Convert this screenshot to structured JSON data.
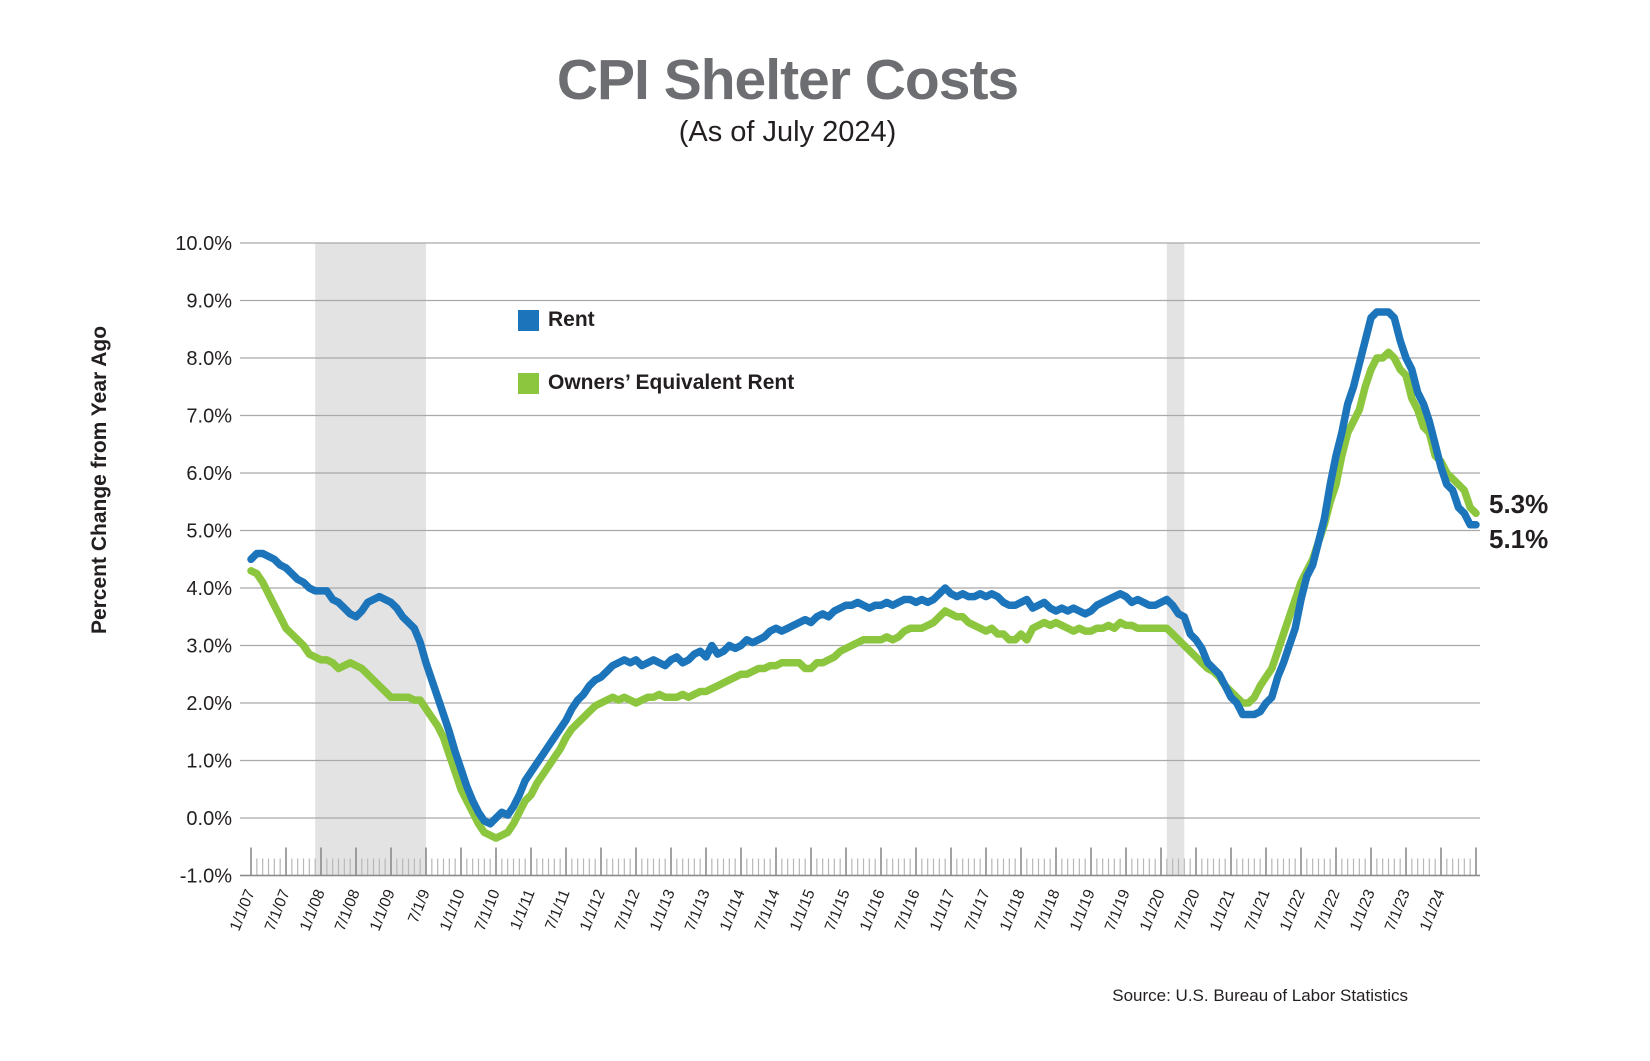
{
  "chart_data": {
    "type": "line",
    "title": "CPI Shelter Costs",
    "subtitle": "(As of July 2024)",
    "ylabel": "Percent Change from Year Ago",
    "xlabel": "",
    "ylim": [
      -1.0,
      10.0
    ],
    "grid": "horizontal",
    "legend_position": "inside-top-left",
    "x_unit": "month",
    "x_range": [
      "1/2007",
      "7/2024"
    ],
    "y_ticks": {
      "labels": [
        "10.0%",
        "9.0%",
        "8.0%",
        "7.0%",
        "6.0%",
        "5.0%",
        "4.0%",
        "3.0%",
        "2.0%",
        "1.0%",
        "0.0%",
        "-1.0%"
      ],
      "values": [
        10,
        9,
        8,
        7,
        6,
        5,
        4,
        3,
        2,
        1,
        0,
        -1
      ]
    },
    "x_tick_labels": [
      "1/1/07",
      "7/1/07",
      "1/1/08",
      "7/1/08",
      "1/1/09",
      "7/1/9",
      "1/1/10",
      "7/1/10",
      "1/1/11",
      "7/1/11",
      "1/1/12",
      "7/1/12",
      "1/1/13",
      "7/1/13",
      "1/1/14",
      "7/1/14",
      "1/1/15",
      "7/1/15",
      "1/1/16",
      "7/1/16",
      "1/1/17",
      "7/1/17",
      "1/1/18",
      "7/1/18",
      "1/1/19",
      "7/1/19",
      "1/1/20",
      "7/1/20",
      "1/1/21",
      "7/1/21",
      "1/1/22",
      "7/1/22",
      "1/1/23",
      "7/1/23",
      "1/1/24"
    ],
    "recession_bands": [
      {
        "from": "12/2007",
        "to": "6/2009"
      },
      {
        "from": "2/2020",
        "to": "4/2020"
      }
    ],
    "band_color": "#e3e3e4",
    "series": [
      {
        "name": "Rent",
        "color": "#1c75bb",
        "end_label": "5.1%",
        "values": [
          4.5,
          4.6,
          4.6,
          4.55,
          4.5,
          4.4,
          4.35,
          4.25,
          4.15,
          4.1,
          4.0,
          3.95,
          3.95,
          3.95,
          3.8,
          3.75,
          3.65,
          3.55,
          3.5,
          3.6,
          3.75,
          3.8,
          3.85,
          3.8,
          3.75,
          3.65,
          3.5,
          3.4,
          3.3,
          3.05,
          2.7,
          2.4,
          2.1,
          1.8,
          1.5,
          1.15,
          0.85,
          0.55,
          0.3,
          0.1,
          -0.05,
          -0.1,
          0.0,
          0.1,
          0.05,
          0.2,
          0.4,
          0.65,
          0.8,
          0.95,
          1.1,
          1.25,
          1.4,
          1.55,
          1.7,
          1.9,
          2.05,
          2.15,
          2.3,
          2.4,
          2.45,
          2.55,
          2.65,
          2.7,
          2.75,
          2.7,
          2.75,
          2.65,
          2.7,
          2.75,
          2.7,
          2.65,
          2.75,
          2.8,
          2.7,
          2.75,
          2.85,
          2.9,
          2.8,
          3.0,
          2.85,
          2.9,
          3.0,
          2.95,
          3.0,
          3.1,
          3.05,
          3.1,
          3.15,
          3.25,
          3.3,
          3.25,
          3.3,
          3.35,
          3.4,
          3.45,
          3.4,
          3.5,
          3.55,
          3.5,
          3.6,
          3.65,
          3.7,
          3.7,
          3.75,
          3.7,
          3.65,
          3.7,
          3.7,
          3.75,
          3.7,
          3.75,
          3.8,
          3.8,
          3.75,
          3.8,
          3.75,
          3.8,
          3.9,
          4.0,
          3.9,
          3.85,
          3.9,
          3.85,
          3.85,
          3.9,
          3.85,
          3.9,
          3.85,
          3.75,
          3.7,
          3.7,
          3.75,
          3.8,
          3.65,
          3.7,
          3.75,
          3.65,
          3.6,
          3.65,
          3.6,
          3.65,
          3.6,
          3.55,
          3.6,
          3.7,
          3.75,
          3.8,
          3.85,
          3.9,
          3.85,
          3.75,
          3.8,
          3.75,
          3.7,
          3.7,
          3.75,
          3.8,
          3.7,
          3.55,
          3.5,
          3.2,
          3.1,
          2.95,
          2.7,
          2.6,
          2.5,
          2.3,
          2.1,
          2.0,
          1.8,
          1.8,
          1.8,
          1.85,
          2.0,
          2.1,
          2.45,
          2.7,
          3.0,
          3.3,
          3.8,
          4.2,
          4.4,
          4.8,
          5.2,
          5.8,
          6.3,
          6.7,
          7.2,
          7.5,
          7.9,
          8.3,
          8.7,
          8.8,
          8.8,
          8.8,
          8.7,
          8.3,
          8.0,
          7.8,
          7.4,
          7.2,
          6.9,
          6.5,
          6.1,
          5.8,
          5.7,
          5.4,
          5.3,
          5.1,
          5.1
        ]
      },
      {
        "name": "Owners’ Equivalent Rent",
        "color": "#8cc63e",
        "end_label": "5.3%",
        "values": [
          4.3,
          4.25,
          4.1,
          3.9,
          3.7,
          3.5,
          3.3,
          3.2,
          3.1,
          3.0,
          2.85,
          2.8,
          2.75,
          2.75,
          2.7,
          2.6,
          2.65,
          2.7,
          2.65,
          2.6,
          2.5,
          2.4,
          2.3,
          2.2,
          2.1,
          2.1,
          2.1,
          2.1,
          2.05,
          2.05,
          1.9,
          1.75,
          1.6,
          1.4,
          1.1,
          0.8,
          0.5,
          0.3,
          0.1,
          -0.1,
          -0.25,
          -0.3,
          -0.35,
          -0.3,
          -0.25,
          -0.1,
          0.1,
          0.3,
          0.4,
          0.6,
          0.75,
          0.9,
          1.05,
          1.2,
          1.4,
          1.55,
          1.65,
          1.75,
          1.85,
          1.95,
          2.0,
          2.05,
          2.1,
          2.05,
          2.1,
          2.05,
          2.0,
          2.05,
          2.1,
          2.1,
          2.15,
          2.1,
          2.1,
          2.1,
          2.15,
          2.1,
          2.15,
          2.2,
          2.2,
          2.25,
          2.3,
          2.35,
          2.4,
          2.45,
          2.5,
          2.5,
          2.55,
          2.6,
          2.6,
          2.65,
          2.65,
          2.7,
          2.7,
          2.7,
          2.7,
          2.6,
          2.6,
          2.7,
          2.7,
          2.75,
          2.8,
          2.9,
          2.95,
          3.0,
          3.05,
          3.1,
          3.1,
          3.1,
          3.1,
          3.15,
          3.1,
          3.15,
          3.25,
          3.3,
          3.3,
          3.3,
          3.35,
          3.4,
          3.5,
          3.6,
          3.55,
          3.5,
          3.5,
          3.4,
          3.35,
          3.3,
          3.25,
          3.3,
          3.2,
          3.2,
          3.1,
          3.1,
          3.2,
          3.1,
          3.3,
          3.35,
          3.4,
          3.35,
          3.4,
          3.35,
          3.3,
          3.25,
          3.3,
          3.25,
          3.25,
          3.3,
          3.3,
          3.35,
          3.3,
          3.4,
          3.35,
          3.35,
          3.3,
          3.3,
          3.3,
          3.3,
          3.3,
          3.3,
          3.2,
          3.1,
          3.0,
          2.9,
          2.8,
          2.7,
          2.6,
          2.55,
          2.45,
          2.3,
          2.2,
          2.1,
          2.0,
          2.0,
          2.1,
          2.3,
          2.45,
          2.6,
          2.9,
          3.2,
          3.5,
          3.8,
          4.1,
          4.3,
          4.5,
          4.8,
          5.1,
          5.5,
          5.8,
          6.3,
          6.7,
          6.9,
          7.1,
          7.5,
          7.8,
          8.0,
          8.0,
          8.1,
          8.0,
          7.8,
          7.7,
          7.3,
          7.1,
          6.8,
          6.7,
          6.3,
          6.2,
          6.0,
          5.9,
          5.8,
          5.7,
          5.4,
          5.3
        ]
      }
    ]
  },
  "source": "Source: U.S. Bureau of Labor Statistics",
  "colors": {
    "title": "#6d6e71",
    "text": "#231f20",
    "gridline": "#a9a9a9",
    "axis_line": "#8a8a8a",
    "minor_tick": "#b8b8b8"
  }
}
